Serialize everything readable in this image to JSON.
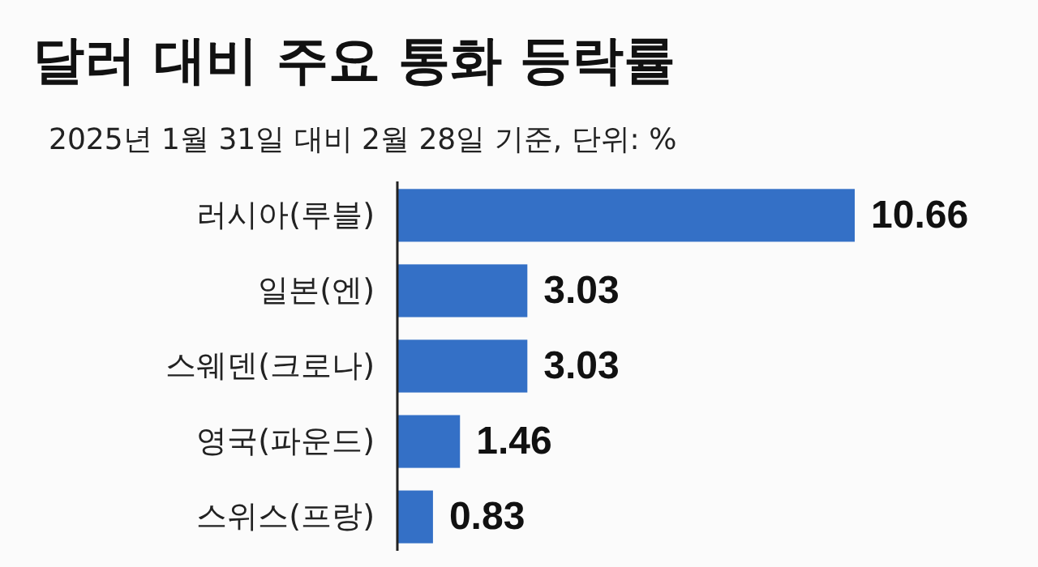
{
  "chart_data": {
    "type": "bar",
    "orientation": "horizontal",
    "title": "달러 대비 주요 통화 등락률",
    "subtitle": "2025년 1월 31일 대비 2월 28일 기준, 단위: %",
    "categories": [
      "러시아(루블)",
      "일본(엔)",
      "스웨덴(크로나)",
      "영국(파운드)",
      "스위스(프랑)"
    ],
    "values": [
      10.66,
      3.03,
      3.03,
      1.46,
      0.83
    ],
    "color": "#3470c6",
    "data_labels": true,
    "xlim": [
      0,
      10.66
    ],
    "tick_labels": "y"
  }
}
